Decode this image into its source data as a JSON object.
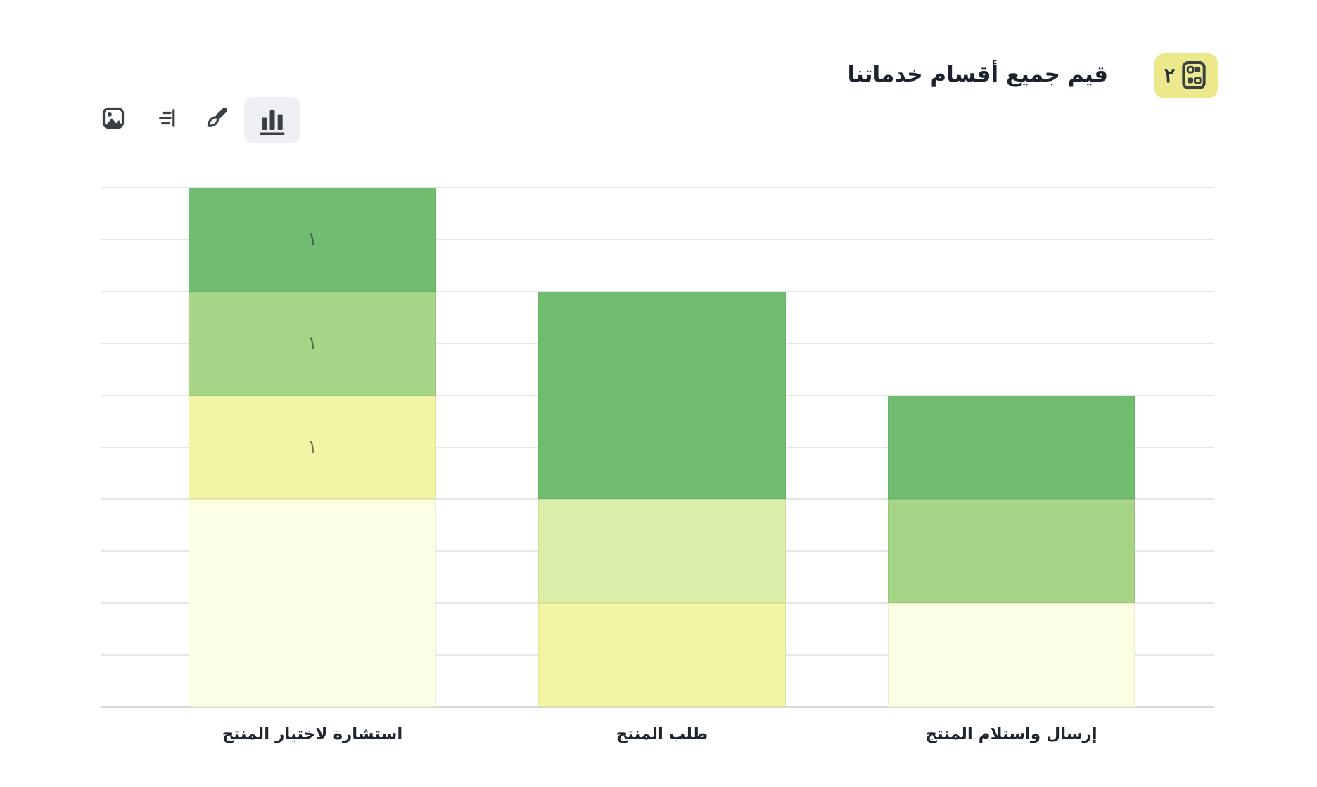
{
  "header": {
    "title": "قيم جميع أقسام خدماتنا",
    "badge": {
      "number": "٢",
      "icon": "choice-grid-icon",
      "background": "#ece88b"
    }
  },
  "toolbar": {
    "buttons": [
      {
        "id": "image",
        "icon": "image-icon",
        "selected": false
      },
      {
        "id": "list",
        "icon": "list-icon",
        "selected": false
      },
      {
        "id": "brush",
        "icon": "brush-icon",
        "selected": false
      },
      {
        "id": "chart",
        "icon": "bar-chart-icon",
        "selected": true
      }
    ]
  },
  "chart_data": {
    "type": "bar",
    "stacked": true,
    "direction": "rtl",
    "title": "قيم جميع أقسام خدماتنا",
    "categories": [
      "استشارة لاختيار المنتج",
      "طلب المنتج",
      "إرسال واستلام المنتج"
    ],
    "ylim": [
      0,
      5
    ],
    "grid_step": 0.5,
    "grid": "on",
    "legend": "none",
    "xlabel": "",
    "ylabel": "",
    "palette": {
      "green": "#6fbe70",
      "light_green": "#a6d685",
      "pale_green": "#daeea7",
      "yellow": "#f2f6a3",
      "cream": "#fdffe3"
    },
    "bars": [
      {
        "category": "استشارة لاختيار المنتج",
        "total": 5,
        "segments": [
          {
            "level": "cream",
            "value": 2,
            "label": ""
          },
          {
            "level": "yellow",
            "value": 1,
            "label": "١"
          },
          {
            "level": "light_green",
            "value": 1,
            "label": "١"
          },
          {
            "level": "green",
            "value": 1,
            "label": "١"
          }
        ]
      },
      {
        "category": "طلب المنتج",
        "total": 4,
        "segments": [
          {
            "level": "yellow",
            "value": 1,
            "label": ""
          },
          {
            "level": "pale_green",
            "value": 1,
            "label": ""
          },
          {
            "level": "green",
            "value": 2,
            "label": ""
          }
        ]
      },
      {
        "category": "إرسال واستلام المنتج",
        "total": 3,
        "segments": [
          {
            "level": "cream",
            "value": 1,
            "label": ""
          },
          {
            "level": "light_green",
            "value": 1,
            "label": ""
          },
          {
            "level": "green",
            "value": 1,
            "label": ""
          }
        ]
      }
    ]
  },
  "colors": {
    "gridline": "#e6e6e6",
    "baseline": "#d8d8d8",
    "icon": "#3a4046",
    "text": "#1c222b"
  }
}
